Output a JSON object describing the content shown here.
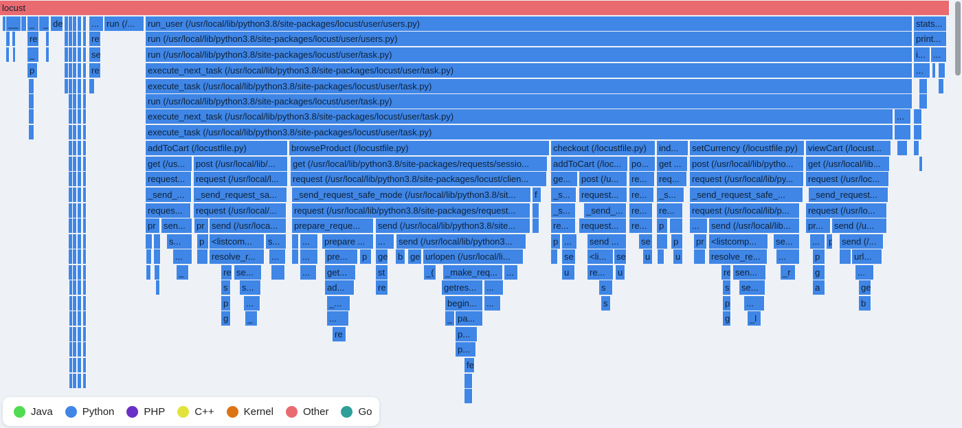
{
  "flamegraph": {
    "root_label": "locust",
    "labels": {
      "l1_1": "__",
      "l1_2": "_",
      "l1_3": "_",
      "l1_4": "de",
      "l1_5": "...",
      "l1_6": "run (/...",
      "l1_7": "run_user (/usr/local/lib/python3.8/site-packages/locust/user/users.py)",
      "l1_8": "stats...",
      "l2_1": "re",
      "l2_2": "re",
      "l2_3": "run (/usr/local/lib/python3.8/site-packages/locust/user/users.py)",
      "l2_4": "print...",
      "l3_1": "_",
      "l3_2": "se",
      "l3_3": "run (/usr/local/lib/python3.8/site-packages/locust/user/task.py)",
      "l3_4": "i...",
      "l3_5": "...",
      "l4_1": "p",
      "l4_2": "re",
      "l4_3": "execute_next_task (/usr/local/lib/python3.8/site-packages/locust/user/task.py)",
      "l4_4": "...",
      "l5_1": "execute_task (/usr/local/lib/python3.8/site-packages/locust/user/task.py)",
      "l6_1": "run (/usr/local/lib/python3.8/site-packages/locust/user/task.py)",
      "l7_1": "execute_next_task (/usr/local/lib/python3.8/site-packages/locust/user/task.py)",
      "l7_2": "...",
      "l8_1": "execute_task (/usr/local/lib/python3.8/site-packages/locust/user/task.py)",
      "l9_1": "addToCart (/locustfile.py)",
      "l9_2": "browseProduct (/locustfile.py)",
      "l9_3": "checkout (/locustfile.py)",
      "l9_4": "ind...",
      "l9_5": "setCurrency (/locustfile.py)",
      "l9_6": "viewCart (/locust...",
      "l10_1": "get (/us...",
      "l10_2": "post (/usr/local/lib/...",
      "l10_3": "get (/usr/local/lib/python3.8/site-packages/requests/sessio...",
      "l10_4": "addToCart (/loc...",
      "l10_5": "po...",
      "l10_6": "get ...",
      "l10_7": "post (/usr/local/lib/pytho...",
      "l10_8": "get (/usr/local/lib...",
      "l11_1": "request...",
      "l11_2": "request (/usr/local/l...",
      "l11_3": "request (/usr/local/lib/python3.8/site-packages/locust/clien...",
      "l11_4": "ge...",
      "l11_5": "post (/u...",
      "l11_6": "re...",
      "l11_7": "req...",
      "l11_8": "request (/usr/local/lib/py...",
      "l11_9": "request (/usr/loc...",
      "l12_1": "_send_...",
      "l12_2": "_send_request_sa...",
      "l12_3": "_send_request_safe_mode (/usr/local/lib/python3.8/sit...",
      "l12_4": "f",
      "l12_5": "_s...",
      "l12_6": "request...",
      "l12_7": "re...",
      "l12_8": "_s...",
      "l12_9": "_send_request_safe_...",
      "l12_10": "_send_request...",
      "l13_1": "reques...",
      "l13_2": "request (/usr/local/...",
      "l13_3": "request (/usr/local/lib/python3.8/site-packages/request...",
      "l13_4": "_s...",
      "l13_5": "_send_...",
      "l13_6": "re...",
      "l13_7": "re...",
      "l13_8": "request (/usr/local/lib/p...",
      "l13_9": "request (/usr/lo...",
      "l14_1": "pr",
      "l14_2": "sen...",
      "l14_3": "pr",
      "l14_4": "send (/usr/loca...",
      "l14_5": "prepare_reque...",
      "l14_6": "send (/usr/local/lib/python3.8/site...",
      "l14_7": "re...",
      "l14_8": "request...",
      "l14_9": "re...",
      "l14_10": "p",
      "l14_11": "...",
      "l14_12": "send (/usr/local/lib...",
      "l14_13": "pr...",
      "l14_14": "send (/u...",
      "l15_1": "s...",
      "l15_2": "p",
      "l15_3": "<listcom...",
      "l15_4": "s...",
      "l15_5": "...",
      "l15_6": "prepare ...",
      "l15_7": "...",
      "l15_8": "send (/usr/local/lib/python3...",
      "l15_9": "p",
      "l15_10": "...",
      "l15_11": "send ...",
      "l15_12": "se",
      "l15_13": "p",
      "l15_14": "pr",
      "l15_15": "<listcomp...",
      "l15_16": "se...",
      "l15_17": "...",
      "l15_18": "p",
      "l15_19": "send (/...",
      "l16_1": "...",
      "l16_2": "resolve_r...",
      "l16_3": "...",
      "l16_4": "...",
      "l16_5": "pre...",
      "l16_6": "p",
      "l16_7": "ge",
      "l16_8": "b",
      "l16_9": "ge",
      "l16_10": "urlopen (/usr/local/li...",
      "l16_11": "se",
      "l16_12": "<li...",
      "l16_13": "se",
      "l16_14": "u",
      "l16_15": "u",
      "l16_16": "resolve_re...",
      "l16_17": "...",
      "l16_18": "p",
      "l16_19": "url...",
      "l17_1": "_",
      "l17_2": "re",
      "l17_3": "se...",
      "l17_4": "...",
      "l17_5": "get...",
      "l17_6": "st",
      "l17_7": "_(",
      "l17_8": "_make_req...",
      "l17_9": "...",
      "l17_10": "u",
      "l17_11": "re...",
      "l17_12": "u",
      "l17_13": "re",
      "l17_14": "sen...",
      "l17_15": "_r",
      "l17_16": "g",
      "l17_17": "...",
      "l18_1": "s",
      "l18_2": "s...",
      "l18_3": "ad...",
      "l18_4": "re",
      "l18_5": "getres...",
      "l18_6": "...",
      "l18_7": "s",
      "l18_8": "s",
      "l18_9": "se...",
      "l18_10": "a",
      "l18_11": "ge",
      "l19_1": "p",
      "l19_2": "...",
      "l19_3": "_...",
      "l19_4": "begin...",
      "l19_5": "...",
      "l19_6": "s",
      "l19_7": "p",
      "l19_8": "...",
      "l19_9": "b",
      "l20_1": "g",
      "l20_2": "_",
      "l20_3": "...",
      "l20_4": "_",
      "l20_5": "pa...",
      "l20_6": "g",
      "l20_7": "_l",
      "l21_1": "re",
      "l21_2": "p...",
      "l22_1": "p...",
      "l23_1": "fe"
    }
  },
  "legend": {
    "items": [
      {
        "label": "Java",
        "color": "#4fdc53"
      },
      {
        "label": "Python",
        "color": "#3f86e6"
      },
      {
        "label": "PHP",
        "color": "#6a2fc6"
      },
      {
        "label": "C++",
        "color": "#e1e33c"
      },
      {
        "label": "Kernel",
        "color": "#dc7416"
      },
      {
        "label": "Other",
        "color": "#e96a6f"
      },
      {
        "label": "Go",
        "color": "#2f9f9a"
      }
    ]
  }
}
